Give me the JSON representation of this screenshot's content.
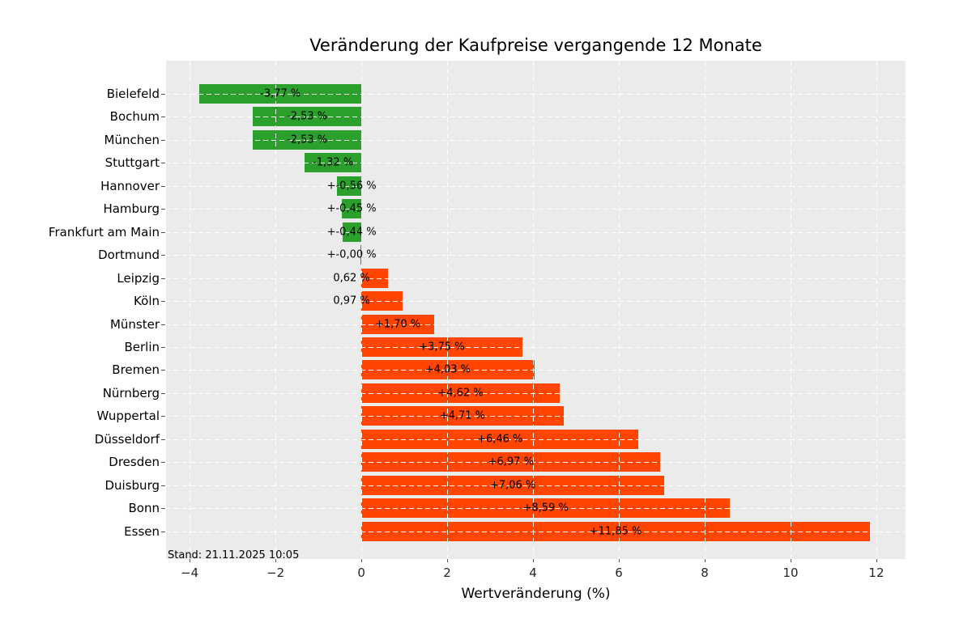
{
  "chart_data": {
    "type": "bar",
    "orientation": "horizontal",
    "title": "Veränderung der Kaufpreise vergangende 12 Monate",
    "xlabel": "Wertveränderung (%)",
    "footer": "Stand: 21.11.2025 10:05",
    "xlim": [
      -4.55,
      12.68
    ],
    "xticks": [
      -4,
      -2,
      0,
      2,
      4,
      6,
      8,
      10,
      12
    ],
    "xtick_labels": [
      "−4",
      "−2",
      "0",
      "2",
      "4",
      "6",
      "8",
      "10",
      "12"
    ],
    "grid": "white dashed, horizontal and vertical",
    "legend": "none",
    "categories": [
      "Bielefeld",
      "Bochum",
      "München",
      "Stuttgart",
      "Hannover",
      "Hamburg",
      "Frankfurt am Main",
      "Dortmund",
      "Leipzig",
      "Köln",
      "Münster",
      "Berlin",
      "Bremen",
      "Nürnberg",
      "Wuppertal",
      "Düsseldorf",
      "Dresden",
      "Duisburg",
      "Bonn",
      "Essen"
    ],
    "values": [
      -3.77,
      -2.53,
      -2.53,
      -1.32,
      -0.56,
      -0.45,
      -0.44,
      -0.0,
      0.62,
      0.97,
      1.7,
      3.75,
      4.03,
      4.62,
      4.71,
      6.46,
      6.97,
      7.06,
      8.59,
      11.85
    ],
    "bar_labels": [
      "-3,77 %",
      "-2,53 %",
      "-2,53 %",
      "-1,32 %",
      "+-0,56 %",
      "+-0,45 %",
      "+-0,44 %",
      "+-0,00 %",
      "0,62 %",
      "0,97 %",
      "+1,70 %",
      "+3,75 %",
      "+4,03 %",
      "+4,62 %",
      "+4,71 %",
      "+6,46 %",
      "+6,97 %",
      "+7,06 %",
      "+8,59 %",
      "+11,85 %"
    ],
    "colors": {
      "negative_bar": "#2ca02c",
      "positive_bar": "#ff4500",
      "plot_background": "#ebebeb",
      "figure_background": "#ffffff",
      "gridline": "#ffffff",
      "text": "#000000",
      "tick_text": "#262626"
    }
  }
}
